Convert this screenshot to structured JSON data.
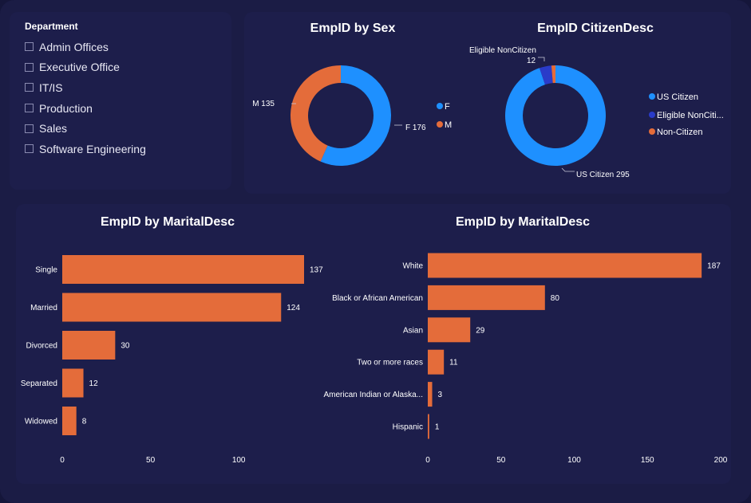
{
  "slicer": {
    "title": "Department",
    "items": [
      "Admin Offices",
      "Executive Office",
      "IT/IS",
      "Production",
      "Sales",
      "Software Engineering"
    ]
  },
  "colors": {
    "blue": "#1e90ff",
    "orange": "#e46c3a",
    "navy": "#2a3bc9",
    "bar": "#e46c3a"
  },
  "chart_data": [
    {
      "type": "pie",
      "title": "EmpID by Sex",
      "labels": [
        "F",
        "M"
      ],
      "values": [
        176,
        135
      ],
      "slice_labels": [
        "F 176",
        "M 135"
      ],
      "legend": "right"
    },
    {
      "type": "pie",
      "title": "EmpID CitizenDesc",
      "labels": [
        "US Citizen",
        "Eligible NonCitizen",
        "Non-Citizen"
      ],
      "values": [
        295,
        12,
        4
      ],
      "slice_labels": [
        "US Citizen 295",
        "12",
        ""
      ],
      "callout": "Eligible NonCitizen",
      "legend_labels": [
        "US Citizen",
        "Eligible NonCiti...",
        "Non-Citizen"
      ],
      "legend": "right"
    },
    {
      "type": "bar",
      "orientation": "horizontal",
      "title": "EmpID by MaritalDesc",
      "categories": [
        "Single",
        "Married",
        "Divorced",
        "Separated",
        "Widowed"
      ],
      "values": [
        137,
        124,
        30,
        12,
        8
      ],
      "xlim": [
        0,
        137
      ],
      "xticks": [
        0,
        50,
        100
      ]
    },
    {
      "type": "bar",
      "orientation": "horizontal",
      "title": "EmpID by MaritalDesc",
      "categories": [
        "White",
        "Black or African American",
        "Asian",
        "Two or more races",
        "American Indian or Alaska...",
        "Hispanic"
      ],
      "values": [
        187,
        80,
        29,
        11,
        3,
        1
      ],
      "xlim": [
        0,
        200
      ],
      "xticks": [
        0,
        50,
        100,
        150,
        200
      ]
    }
  ]
}
